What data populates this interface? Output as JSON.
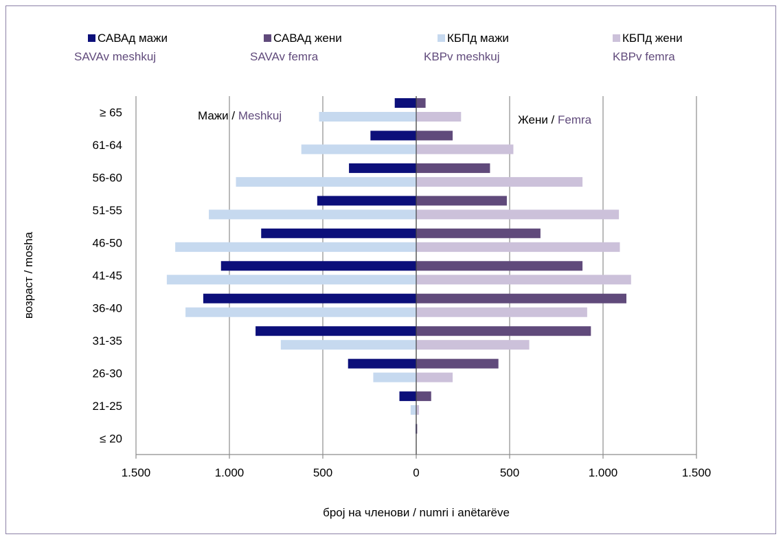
{
  "chart_data": {
    "type": "bar",
    "orientation": "horizontal",
    "layout": "population-pyramid",
    "categories": [
      "≤  20",
      "21-25",
      "26-30",
      "31-35",
      "36-40",
      "41-45",
      "46-50",
      "51-55",
      "56-60",
      "61-64",
      "≥  65"
    ],
    "series": [
      {
        "name": "САВАд мажи",
        "name_alt": "SAVAv meshkuj",
        "side": "left",
        "color": "#0c0f7a",
        "values": [
          3,
          90,
          365,
          860,
          1140,
          1045,
          830,
          530,
          360,
          245,
          115
        ]
      },
      {
        "name": "КБПд мажи",
        "name_alt": "KBPv meshkuj",
        "side": "left",
        "color": "#c6d9ef",
        "values": [
          0,
          30,
          230,
          725,
          1235,
          1335,
          1290,
          1110,
          965,
          615,
          520
        ]
      },
      {
        "name": "САВАд жени",
        "name_alt": "SAVAv femra",
        "side": "right",
        "color": "#604a7b",
        "values": [
          5,
          80,
          440,
          935,
          1125,
          890,
          665,
          485,
          395,
          195,
          50
        ]
      },
      {
        "name": "КБПд жени",
        "name_alt": "KBPv femra",
        "side": "right",
        "color": "#ccc1da",
        "values": [
          0,
          15,
          195,
          605,
          915,
          1150,
          1090,
          1085,
          890,
          520,
          240
        ]
      }
    ],
    "xlim": [
      -1500,
      1500
    ],
    "xticks": [
      -1500,
      -1000,
      -500,
      0,
      500,
      1000,
      1500
    ],
    "xtick_labels": [
      "1.500",
      "1.000",
      "500",
      "0",
      "500",
      "1.000",
      "1.500"
    ],
    "xlabel": "број на членови / numri i anëtarëve",
    "ylabel": "возраст / mosha",
    "grid": "vertical",
    "legend_position": "top",
    "annotations": {
      "left": {
        "primary": "Мажи",
        "separator": " / ",
        "secondary": "Meshkuj"
      },
      "right": {
        "primary": "Жени",
        "separator": " / ",
        "secondary": "Femra"
      }
    },
    "colors": {
      "primary_text": "#000000",
      "secondary_text": "#604a7b",
      "gridline": "#8c8c8c"
    }
  }
}
